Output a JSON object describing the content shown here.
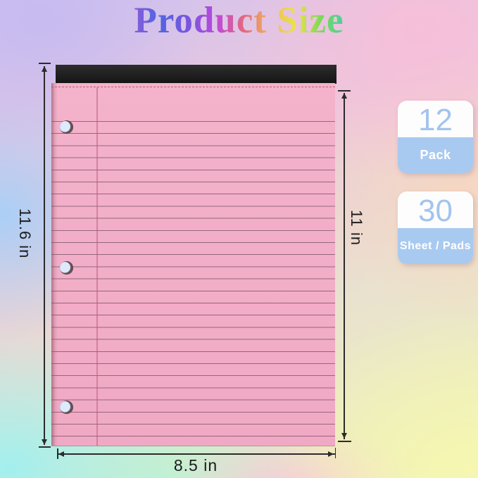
{
  "title": "Product Size",
  "notepad": {
    "paper_color": "#f2adc7",
    "binding_color": "#1c1c1c",
    "hole_count": 3
  },
  "dimensions": {
    "total_height_label": "11.6 in",
    "sheet_height_label": "11 in",
    "width_label": "8.5 in"
  },
  "badges": [
    {
      "value": "12",
      "label": "Pack"
    },
    {
      "value": "30",
      "label": "Sheet / Pads"
    }
  ],
  "colors": {
    "badge_fill": "#a9caf0",
    "badge_value_text": "#a2c4ee",
    "paper_pink": "#f2adc7",
    "dimension_line": "#2b2b2b"
  }
}
